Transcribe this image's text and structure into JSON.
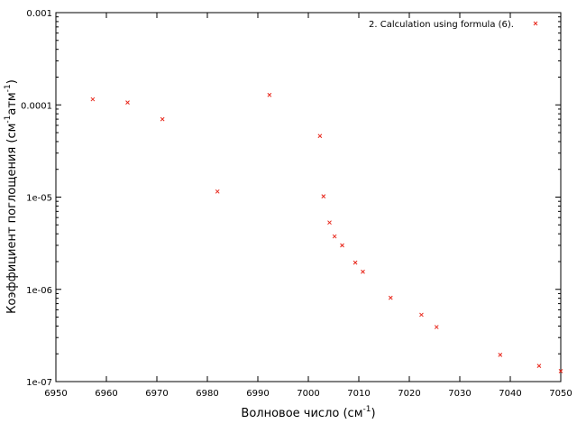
{
  "chart_data": {
    "type": "scatter",
    "xlabel_main": "Волновое число (см",
    "xlabel_sup": "-1",
    "xlabel_end": ")",
    "ylabel_main": "Коэффициент поглощения (см",
    "ylabel_sup1": "-1",
    "ylabel_mid": "атм",
    "ylabel_sup2": "-1",
    "ylabel_end": ")",
    "xlim": [
      6950,
      7050
    ],
    "ylim": [
      1e-07,
      0.001
    ],
    "yscale": "log",
    "x_ticks": [
      6950,
      6960,
      6970,
      6980,
      6990,
      7000,
      7010,
      7020,
      7030,
      7040,
      7050
    ],
    "x_tick_labels": [
      "6950",
      "6960",
      "6970",
      "6980",
      "6990",
      "7000",
      "7010",
      "7020",
      "7030",
      "7040",
      "7050"
    ],
    "y_ticks": [
      1e-07,
      1e-06,
      1e-05,
      0.0001,
      0.001
    ],
    "y_tick_labels": [
      "1e-07",
      "1e-06",
      "1e-05",
      "0.0001",
      "0.001"
    ],
    "grid": false,
    "legend_position": "top-right",
    "series": [
      {
        "name": "2. Calculation using formula (6).",
        "color": "#e8281c",
        "marker": "x",
        "x": [
          6957.3,
          6964.2,
          6971.1,
          6982.0,
          6992.3,
          7002.3,
          7003.0,
          7004.2,
          7005.2,
          7006.7,
          7009.3,
          7010.8,
          7016.3,
          7022.4,
          7025.4,
          7038.0,
          7045.7,
          7050.0
        ],
        "y": [
          0.000115,
          0.000106,
          7e-05,
          1.15e-05,
          0.000128,
          4.6e-05,
          1.02e-05,
          5.3e-06,
          3.75e-06,
          3e-06,
          1.95e-06,
          1.55e-06,
          8.1e-07,
          5.3e-07,
          3.9e-07,
          1.95e-07,
          1.48e-07,
          1.3e-07
        ]
      }
    ]
  }
}
